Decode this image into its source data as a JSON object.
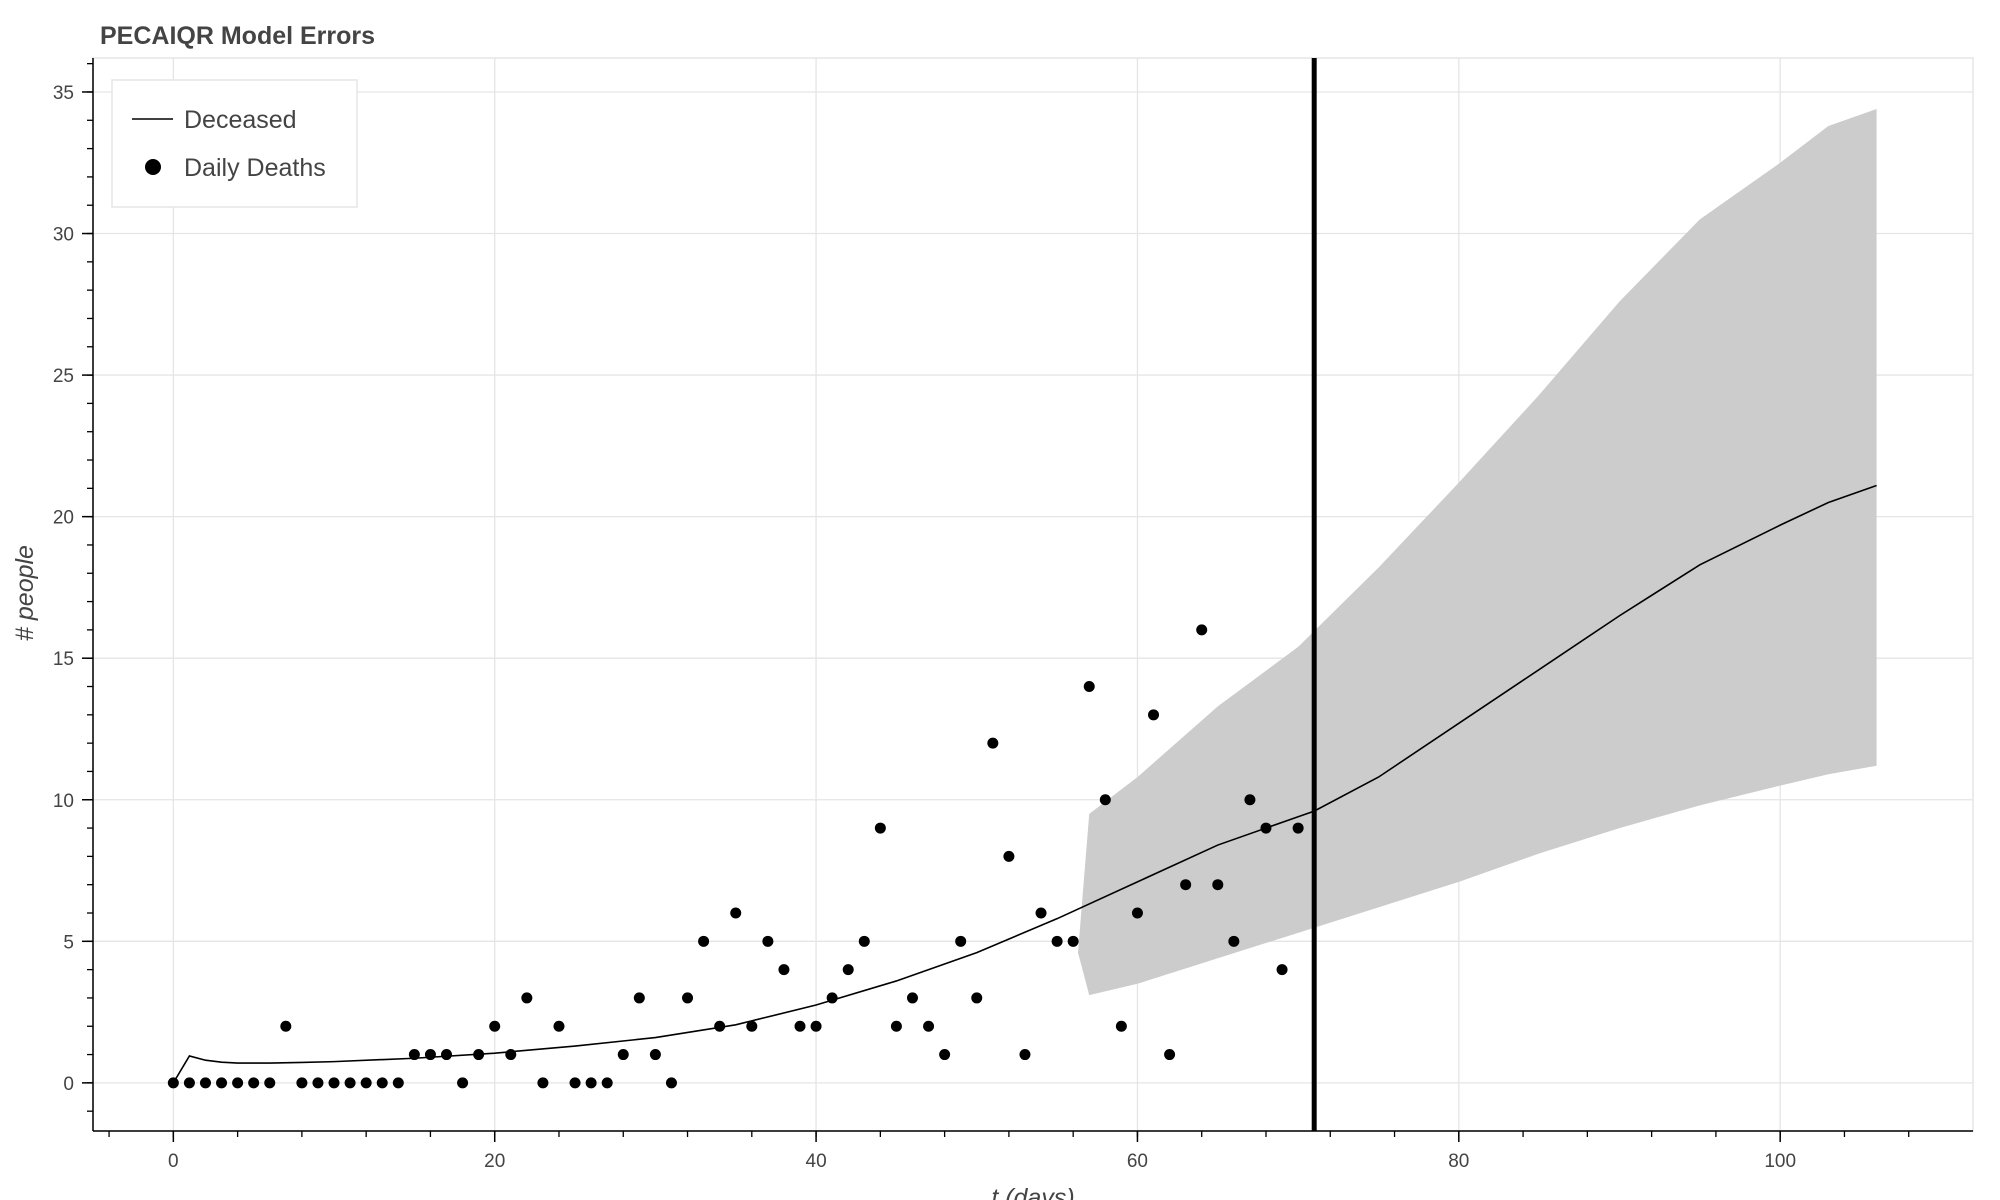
{
  "chart_data": {
    "type": "scatter",
    "title": "PECAIQR Model Errors",
    "xlabel": "t (days)",
    "ylabel": "# people",
    "xlim": [
      -5,
      112
    ],
    "ylim": [
      -1.7,
      36.2
    ],
    "x_ticks": [
      0,
      20,
      40,
      60,
      80,
      100
    ],
    "y_ticks": [
      0,
      5,
      10,
      15,
      20,
      25,
      30,
      35
    ],
    "grid": true,
    "legend_position": "top-left",
    "legend": [
      {
        "label": "Deceased",
        "marker": "line"
      },
      {
        "label": "Daily Deaths",
        "marker": "circle"
      }
    ],
    "series": [
      {
        "name": "Deceased",
        "kind": "line",
        "color": "#000000",
        "points": [
          [
            0,
            0
          ],
          [
            1,
            0.95
          ],
          [
            2,
            0.8
          ],
          [
            3,
            0.73
          ],
          [
            4,
            0.7
          ],
          [
            6,
            0.7
          ],
          [
            8,
            0.72
          ],
          [
            10,
            0.75
          ],
          [
            15,
            0.87
          ],
          [
            20,
            1.05
          ],
          [
            25,
            1.3
          ],
          [
            30,
            1.6
          ],
          [
            35,
            2.05
          ],
          [
            40,
            2.75
          ],
          [
            45,
            3.6
          ],
          [
            50,
            4.6
          ],
          [
            55,
            5.8
          ],
          [
            60,
            7.1
          ],
          [
            65,
            8.4
          ],
          [
            70,
            9.4
          ],
          [
            71,
            9.6
          ],
          [
            75,
            10.8
          ],
          [
            80,
            12.7
          ],
          [
            85,
            14.6
          ],
          [
            90,
            16.5
          ],
          [
            95,
            18.3
          ],
          [
            100,
            19.7
          ],
          [
            103,
            20.5
          ],
          [
            106,
            21.1
          ]
        ]
      },
      {
        "name": "Daily Deaths",
        "kind": "scatter",
        "color": "#000000",
        "points": [
          [
            0,
            0
          ],
          [
            1,
            0
          ],
          [
            2,
            0
          ],
          [
            3,
            0
          ],
          [
            4,
            0
          ],
          [
            5,
            0
          ],
          [
            6,
            0
          ],
          [
            7,
            2
          ],
          [
            8,
            0
          ],
          [
            9,
            0
          ],
          [
            10,
            0
          ],
          [
            11,
            0
          ],
          [
            12,
            0
          ],
          [
            13,
            0
          ],
          [
            14,
            0
          ],
          [
            15,
            1
          ],
          [
            16,
            1
          ],
          [
            17,
            1
          ],
          [
            18,
            0
          ],
          [
            19,
            1
          ],
          [
            20,
            2
          ],
          [
            21,
            1
          ],
          [
            22,
            3
          ],
          [
            23,
            0
          ],
          [
            24,
            2
          ],
          [
            25,
            0
          ],
          [
            26,
            0
          ],
          [
            27,
            0
          ],
          [
            28,
            1
          ],
          [
            29,
            3
          ],
          [
            30,
            1
          ],
          [
            31,
            0
          ],
          [
            32,
            3
          ],
          [
            33,
            5
          ],
          [
            34,
            2
          ],
          [
            35,
            6
          ],
          [
            36,
            2
          ],
          [
            37,
            5
          ],
          [
            38,
            4
          ],
          [
            39,
            2
          ],
          [
            40,
            2
          ],
          [
            41,
            3
          ],
          [
            42,
            4
          ],
          [
            43,
            5
          ],
          [
            44,
            9
          ],
          [
            45,
            2
          ],
          [
            46,
            3
          ],
          [
            47,
            2
          ],
          [
            48,
            1
          ],
          [
            49,
            5
          ],
          [
            50,
            3
          ],
          [
            51,
            12
          ],
          [
            52,
            8
          ],
          [
            53,
            1
          ],
          [
            54,
            6
          ],
          [
            55,
            5
          ],
          [
            56,
            5
          ],
          [
            57,
            14
          ],
          [
            58,
            10
          ],
          [
            59,
            2
          ],
          [
            60,
            6
          ],
          [
            61,
            13
          ],
          [
            62,
            1
          ],
          [
            63,
            7
          ],
          [
            64,
            16
          ],
          [
            65,
            7
          ],
          [
            66,
            5
          ],
          [
            67,
            10
          ],
          [
            68,
            9
          ],
          [
            69,
            4
          ],
          [
            70,
            9
          ]
        ]
      }
    ],
    "band": {
      "color": "#cccccc",
      "upper": [
        [
          56.3,
          4.6
        ],
        [
          57,
          9.5
        ],
        [
          60,
          10.8
        ],
        [
          65,
          13.3
        ],
        [
          70,
          15.4
        ],
        [
          75,
          18.2
        ],
        [
          80,
          21.2
        ],
        [
          85,
          24.3
        ],
        [
          90,
          27.6
        ],
        [
          95,
          30.5
        ],
        [
          100,
          32.5
        ],
        [
          103,
          33.8
        ],
        [
          106,
          34.4
        ]
      ],
      "lower": [
        [
          56.3,
          4.6
        ],
        [
          57,
          3.1
        ],
        [
          60,
          3.5
        ],
        [
          65,
          4.4
        ],
        [
          70,
          5.3
        ],
        [
          75,
          6.2
        ],
        [
          80,
          7.1
        ],
        [
          85,
          8.1
        ],
        [
          90,
          9.0
        ],
        [
          95,
          9.8
        ],
        [
          100,
          10.5
        ],
        [
          103,
          10.9
        ],
        [
          106,
          11.2
        ]
      ]
    },
    "vertical_line": {
      "x": 71,
      "color": "#000000"
    }
  }
}
